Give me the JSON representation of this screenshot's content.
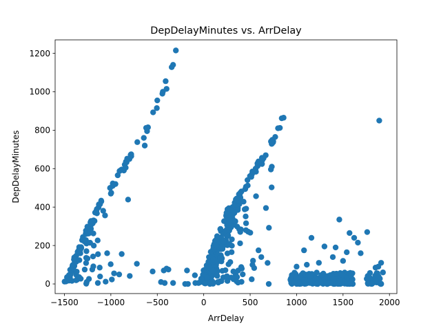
{
  "chart_data": {
    "type": "scatter",
    "title": "DepDelayMinutes vs. ArrDelay",
    "xlabel": "ArrDelay",
    "ylabel": "DepDelayMinutes",
    "xlim": [
      -1600,
      2080
    ],
    "ylim": [
      -50,
      1270
    ],
    "xticks": [
      -1500,
      -1000,
      -500,
      0,
      500,
      1000,
      1500,
      2000
    ],
    "yticks": [
      0,
      200,
      400,
      600,
      800,
      1000,
      1200
    ],
    "grid": false,
    "marker_color": "#1f77b4",
    "clusters": [
      {
        "name_hint": "band-a",
        "x0": -1490,
        "y0": 0,
        "x1": -1140,
        "y1": 400,
        "spread": 25,
        "count": 90
      },
      {
        "name_hint": "band-b",
        "x0": -1140,
        "y0": 400,
        "x1": -780,
        "y1": 680,
        "spread": 10,
        "count": 30
      },
      {
        "name_hint": "band-c",
        "x0": 0,
        "y0": 0,
        "x1": 340,
        "y1": 420,
        "spread": 60,
        "count": 220
      },
      {
        "name_hint": "band-d",
        "x0": 340,
        "y0": 420,
        "x1": 760,
        "y1": 760,
        "spread": 20,
        "count": 70
      },
      {
        "name_hint": "band-e",
        "x0": 950,
        "y0": 0,
        "x1": 1600,
        "y1": 60,
        "spread": 30,
        "count": 180
      },
      {
        "name_hint": "band-f",
        "x0": 1760,
        "y0": 0,
        "x1": 1920,
        "y1": 70,
        "spread": 15,
        "count": 35
      }
    ],
    "points": [
      {
        "x": -300,
        "y": 1215
      },
      {
        "x": -330,
        "y": 1140
      },
      {
        "x": -345,
        "y": 1128
      },
      {
        "x": -410,
        "y": 1055
      },
      {
        "x": -400,
        "y": 1015
      },
      {
        "x": -440,
        "y": 1000
      },
      {
        "x": -445,
        "y": 990
      },
      {
        "x": -500,
        "y": 955
      },
      {
        "x": -505,
        "y": 915
      },
      {
        "x": -545,
        "y": 893
      },
      {
        "x": -600,
        "y": 815
      },
      {
        "x": -620,
        "y": 812
      },
      {
        "x": -610,
        "y": 795
      },
      {
        "x": -645,
        "y": 760
      },
      {
        "x": -715,
        "y": 738
      },
      {
        "x": -635,
        "y": 720
      },
      {
        "x": -780,
        "y": 665
      },
      {
        "x": -800,
        "y": 650
      },
      {
        "x": -840,
        "y": 605
      },
      {
        "x": -860,
        "y": 590
      },
      {
        "x": -950,
        "y": 520
      },
      {
        "x": -980,
        "y": 510
      },
      {
        "x": -1000,
        "y": 470
      },
      {
        "x": 860,
        "y": 865
      },
      {
        "x": 840,
        "y": 862
      },
      {
        "x": 820,
        "y": 812
      },
      {
        "x": 800,
        "y": 810
      },
      {
        "x": 770,
        "y": 765
      },
      {
        "x": 1890,
        "y": 850
      },
      {
        "x": 670,
        "y": 395
      },
      {
        "x": 620,
        "y": 140
      },
      {
        "x": 590,
        "y": 175
      },
      {
        "x": 410,
        "y": 80
      },
      {
        "x": 420,
        "y": 50
      },
      {
        "x": -720,
        "y": 105
      },
      {
        "x": -1040,
        "y": 160
      },
      {
        "x": -1120,
        "y": 85
      },
      {
        "x": -1200,
        "y": 75
      },
      {
        "x": -1260,
        "y": 10
      },
      {
        "x": -1140,
        "y": 5
      },
      {
        "x": -550,
        "y": 65
      },
      {
        "x": -430,
        "y": 70
      },
      {
        "x": -380,
        "y": 75
      },
      {
        "x": -400,
        "y": 80
      },
      {
        "x": -460,
        "y": 10
      },
      {
        "x": -420,
        "y": 5
      },
      {
        "x": -330,
        "y": 5
      },
      {
        "x": -200,
        "y": 0
      },
      {
        "x": -170,
        "y": 0
      },
      {
        "x": -180,
        "y": 70
      },
      {
        "x": -95,
        "y": 45
      },
      {
        "x": -90,
        "y": 5
      },
      {
        "x": 1460,
        "y": 335
      },
      {
        "x": 1570,
        "y": 265
      },
      {
        "x": 1760,
        "y": 270
      },
      {
        "x": 1160,
        "y": 240
      },
      {
        "x": 1620,
        "y": 240
      },
      {
        "x": 1660,
        "y": 215
      },
      {
        "x": 1300,
        "y": 195
      },
      {
        "x": 1420,
        "y": 190
      },
      {
        "x": 1080,
        "y": 175
      },
      {
        "x": 1540,
        "y": 165
      },
      {
        "x": 1690,
        "y": 160
      },
      {
        "x": 1390,
        "y": 140
      },
      {
        "x": 1910,
        "y": 110
      },
      {
        "x": 1880,
        "y": 90
      },
      {
        "x": 1850,
        "y": 85
      },
      {
        "x": 1930,
        "y": 60
      },
      {
        "x": 1000,
        "y": 90
      },
      {
        "x": 1240,
        "y": 110
      },
      {
        "x": 700,
        "y": 0
      },
      {
        "x": 1110,
        "y": 100
      },
      {
        "x": 1500,
        "y": 120
      }
    ]
  }
}
